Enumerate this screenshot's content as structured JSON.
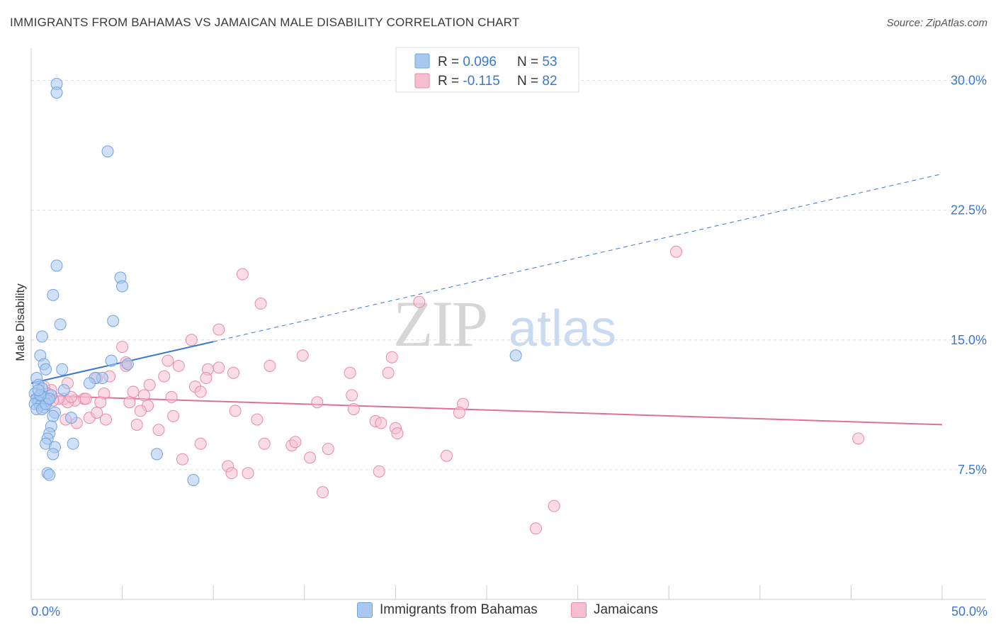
{
  "header": {
    "title": "IMMIGRANTS FROM BAHAMAS VS JAMAICAN MALE DISABILITY CORRELATION CHART",
    "source": "Source: ZipAtlas.com"
  },
  "watermark": "ZIPatlas",
  "colors": {
    "blue": "#6fa3e0",
    "blue_fill": "#a9c8f0",
    "blue_line": "#3a78d0",
    "pink": "#e88aa8",
    "pink_fill": "#f6bfd0",
    "pink_line": "#e0709a",
    "axis_label": "#3a78d0",
    "grid": "#dddddd"
  },
  "legend_top": {
    "rows": [
      {
        "r_label": "R = ",
        "r_value": "0.096",
        "n_label": "N = ",
        "n_value": "53"
      },
      {
        "r_label": "R = ",
        "r_value": "-0.115",
        "n_label": "N = ",
        "n_value": "82"
      }
    ]
  },
  "legend_bottom": {
    "items": [
      {
        "label": "Immigrants from Bahamas"
      },
      {
        "label": "Jamaicans"
      }
    ]
  },
  "chart_data": {
    "type": "scatter",
    "title": "IMMIGRANTS FROM BAHAMAS VS JAMAICAN MALE DISABILITY CORRELATION CHART",
    "xlabel": "",
    "ylabel": "Male Disability",
    "xlim": [
      0,
      50
    ],
    "ylim": [
      0,
      31.5
    ],
    "x_tick_labels": [
      "0.0%",
      "50.0%"
    ],
    "y_ticks": [
      7.5,
      15.0,
      22.5,
      30.0
    ],
    "y_tick_labels": [
      "7.5%",
      "15.0%",
      "22.5%",
      "30.0%"
    ],
    "grid": true,
    "legend_placement": "top-center",
    "series": [
      {
        "name": "Immigrants from Bahamas",
        "color": "blue",
        "trend": {
          "x": [
            0,
            10
          ],
          "y": [
            12.5,
            14.9
          ],
          "dashed_extension_to": [
            50,
            24.6
          ]
        },
        "points": [
          [
            1.4,
            29.8
          ],
          [
            1.4,
            29.3
          ],
          [
            4.2,
            25.9
          ],
          [
            1.4,
            19.3
          ],
          [
            1.2,
            17.6
          ],
          [
            4.9,
            18.6
          ],
          [
            5.0,
            18.1
          ],
          [
            1.6,
            15.9
          ],
          [
            4.5,
            16.1
          ],
          [
            0.6,
            15.2
          ],
          [
            0.5,
            14.1
          ],
          [
            0.7,
            13.6
          ],
          [
            0.8,
            13.3
          ],
          [
            1.7,
            13.3
          ],
          [
            4.4,
            13.8
          ],
          [
            5.3,
            13.6
          ],
          [
            3.9,
            12.8
          ],
          [
            3.5,
            12.8
          ],
          [
            3.2,
            12.5
          ],
          [
            0.3,
            12.8
          ],
          [
            0.4,
            12.4
          ],
          [
            0.6,
            12.2
          ],
          [
            1.8,
            12.1
          ],
          [
            1.1,
            11.8
          ],
          [
            0.2,
            11.9
          ],
          [
            0.3,
            11.6
          ],
          [
            0.7,
            11.7
          ],
          [
            0.9,
            11.5
          ],
          [
            0.4,
            11.4
          ],
          [
            0.2,
            11.3
          ],
          [
            0.5,
            11.2
          ],
          [
            0.7,
            11.1
          ],
          [
            0.3,
            11.0
          ],
          [
            0.6,
            11.0
          ],
          [
            0.8,
            11.3
          ],
          [
            1.0,
            11.6
          ],
          [
            1.3,
            10.8
          ],
          [
            1.2,
            10.6
          ],
          [
            2.2,
            10.5
          ],
          [
            1.1,
            10.0
          ],
          [
            1.0,
            9.6
          ],
          [
            0.9,
            9.3
          ],
          [
            0.8,
            9.0
          ],
          [
            1.3,
            8.8
          ],
          [
            2.3,
            9.0
          ],
          [
            1.2,
            8.4
          ],
          [
            6.9,
            8.4
          ],
          [
            0.9,
            7.3
          ],
          [
            1.0,
            7.2
          ],
          [
            8.9,
            6.9
          ],
          [
            26.6,
            14.1
          ],
          [
            0.5,
            11.8
          ],
          [
            0.4,
            12.1
          ]
        ]
      },
      {
        "name": "Jamaicans",
        "color": "pink",
        "trend": {
          "x": [
            0,
            50
          ],
          "y": [
            11.8,
            10.1
          ]
        },
        "points": [
          [
            35.4,
            20.1
          ],
          [
            11.6,
            18.8
          ],
          [
            12.6,
            17.1
          ],
          [
            21.3,
            17.2
          ],
          [
            5.0,
            14.6
          ],
          [
            8.8,
            15.0
          ],
          [
            10.3,
            15.6
          ],
          [
            7.5,
            13.8
          ],
          [
            8.1,
            13.5
          ],
          [
            9.7,
            13.3
          ],
          [
            10.3,
            13.4
          ],
          [
            11.1,
            13.1
          ],
          [
            13.1,
            13.5
          ],
          [
            14.9,
            14.1
          ],
          [
            17.5,
            13.1
          ],
          [
            19.6,
            13.1
          ],
          [
            19.8,
            14.0
          ],
          [
            5.2,
            13.7
          ],
          [
            5.2,
            13.5
          ],
          [
            3.6,
            12.8
          ],
          [
            4.3,
            12.9
          ],
          [
            7.3,
            12.9
          ],
          [
            6.5,
            12.4
          ],
          [
            9.0,
            12.3
          ],
          [
            9.6,
            12.8
          ],
          [
            5.6,
            12.0
          ],
          [
            6.2,
            11.8
          ],
          [
            4.0,
            11.9
          ],
          [
            2.9,
            11.6
          ],
          [
            2.4,
            11.5
          ],
          [
            1.8,
            11.6
          ],
          [
            2.0,
            11.4
          ],
          [
            2.2,
            11.7
          ],
          [
            1.5,
            11.6
          ],
          [
            1.1,
            12.1
          ],
          [
            0.7,
            12.3
          ],
          [
            0.9,
            11.9
          ],
          [
            3.8,
            11.4
          ],
          [
            5.4,
            11.4
          ],
          [
            6.4,
            11.2
          ],
          [
            7.7,
            11.7
          ],
          [
            9.3,
            12.0
          ],
          [
            15.7,
            11.4
          ],
          [
            17.7,
            11.0
          ],
          [
            17.6,
            11.8
          ],
          [
            23.7,
            11.3
          ],
          [
            23.5,
            10.8
          ],
          [
            1.9,
            10.4
          ],
          [
            2.5,
            10.2
          ],
          [
            3.2,
            10.5
          ],
          [
            3.6,
            10.8
          ],
          [
            4.1,
            10.4
          ],
          [
            5.8,
            10.1
          ],
          [
            7.0,
            9.8
          ],
          [
            7.8,
            10.6
          ],
          [
            11.2,
            10.9
          ],
          [
            12.4,
            10.4
          ],
          [
            18.9,
            10.3
          ],
          [
            19.2,
            10.2
          ],
          [
            20.0,
            9.9
          ],
          [
            20.1,
            9.6
          ],
          [
            9.3,
            9.0
          ],
          [
            12.8,
            9.0
          ],
          [
            14.3,
            8.9
          ],
          [
            14.5,
            9.1
          ],
          [
            15.3,
            8.2
          ],
          [
            16.3,
            8.7
          ],
          [
            22.8,
            8.3
          ],
          [
            8.3,
            8.1
          ],
          [
            10.8,
            7.7
          ],
          [
            11.0,
            7.3
          ],
          [
            11.9,
            7.3
          ],
          [
            19.1,
            7.4
          ],
          [
            16.0,
            6.2
          ],
          [
            28.7,
            5.4
          ],
          [
            27.7,
            4.1
          ],
          [
            45.4,
            9.3
          ],
          [
            2.0,
            12.5
          ],
          [
            1.2,
            11.5
          ],
          [
            0.4,
            11.7
          ],
          [
            3.0,
            11.6
          ],
          [
            6.0,
            10.9
          ]
        ]
      }
    ]
  },
  "axis": {
    "y_title": "Male Disability",
    "x_left_label": "0.0%",
    "x_right_label": "50.0%"
  }
}
